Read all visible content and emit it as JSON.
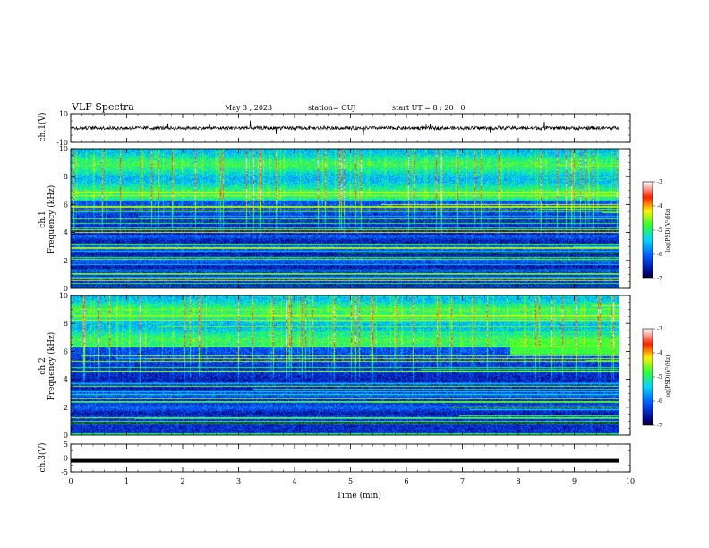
{
  "header": {
    "title": "VLF Spectra",
    "date": "May 3  , 2023",
    "station": "station= OUJ",
    "start": "start  UT =   8  : 20 : 0"
  },
  "chart_data": [
    {
      "type": "line",
      "name": "ch1-waveform",
      "ylabel": "ch.1(V)",
      "ylim": [
        -10,
        10
      ],
      "yticks": [
        "10",
        "-10"
      ],
      "xlim": [
        0,
        10
      ]
    },
    {
      "type": "heatmap",
      "name": "ch1-spectrogram",
      "ylabel": "ch.1\nFrequency  (kHz)",
      "ylabel_line1": "ch.1",
      "ylabel_line2": "Frequency  (kHz)",
      "ylim": [
        0,
        10
      ],
      "yticks": [
        "0",
        "2",
        "4",
        "6",
        "8",
        "10"
      ],
      "xlim": [
        0,
        10
      ],
      "data_extent_x": [
        0,
        9.8
      ],
      "colorbar": {
        "label": "log(PSD)(V²/Hz)",
        "range": [
          -7,
          -3
        ],
        "ticks": [
          "-7",
          "-6",
          "-5",
          "-4",
          "-3"
        ]
      }
    },
    {
      "type": "heatmap",
      "name": "ch2-spectrogram",
      "ylabel_line1": "ch.2",
      "ylabel_line2": "Frequency  (kHz)",
      "ylim": [
        0,
        10
      ],
      "yticks": [
        "0",
        "2",
        "4",
        "6",
        "8",
        "10"
      ],
      "xlim": [
        0,
        10
      ],
      "data_extent_x": [
        0,
        9.8
      ],
      "colorbar": {
        "label": "log(PSD)(V²/Hz)",
        "range": [
          -7,
          -3
        ],
        "ticks": [
          "-7",
          "-6",
          "-5",
          "-4",
          "-3"
        ]
      }
    },
    {
      "type": "line",
      "name": "ch3-waveform",
      "ylabel": "ch.3(V)",
      "ylim": [
        -5,
        5
      ],
      "yticks": [
        "5",
        "0",
        "-5"
      ],
      "value": -1,
      "xlim": [
        0,
        10
      ],
      "xlabel": "Time  (min)",
      "xticks": [
        "0",
        "1",
        "2",
        "3",
        "4",
        "5",
        "6",
        "7",
        "8",
        "9",
        "10"
      ]
    }
  ]
}
